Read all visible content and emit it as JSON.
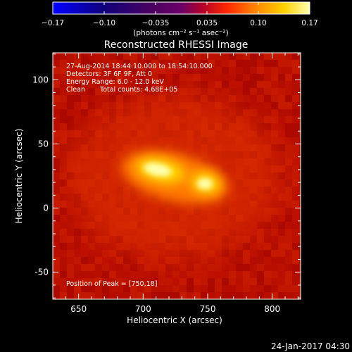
{
  "colorbar": {
    "tick_labels": [
      "−0.17",
      "−0.10",
      "−0.035",
      "0.035",
      "0.10",
      "0.17"
    ],
    "units_label": "(photons cm⁻² s⁻¹ asec⁻²)",
    "range": [
      -0.17,
      0.17
    ]
  },
  "plot": {
    "title": "Reconstructed RHESSI Image",
    "xlabel": "Heliocentric X (arcsec)",
    "ylabel": "Heliocentric Y (arcsec)",
    "x_ticks": [
      "650",
      "700",
      "750",
      "800"
    ],
    "y_ticks": [
      "-50",
      "0",
      "50",
      "100"
    ],
    "xlim": [
      630,
      822
    ],
    "ylim": [
      -71,
      121
    ]
  },
  "annotations": {
    "time_range": "27-Aug-2014 18:44:10.000 to 18:54:10.000",
    "detectors": "Detectors: 3F 6F 9F, Att 0",
    "energy_range": "Energy Range: 6.0 - 12.0 keV",
    "clean": "Clean",
    "total_counts": "Total counts: 4.68E+05",
    "peak_position": "Position of Peak = [750,18]"
  },
  "footer": {
    "timestamp": "24-Jan-2017 04:30"
  },
  "source": {
    "peak_x": 750,
    "peak_y": 18
  }
}
